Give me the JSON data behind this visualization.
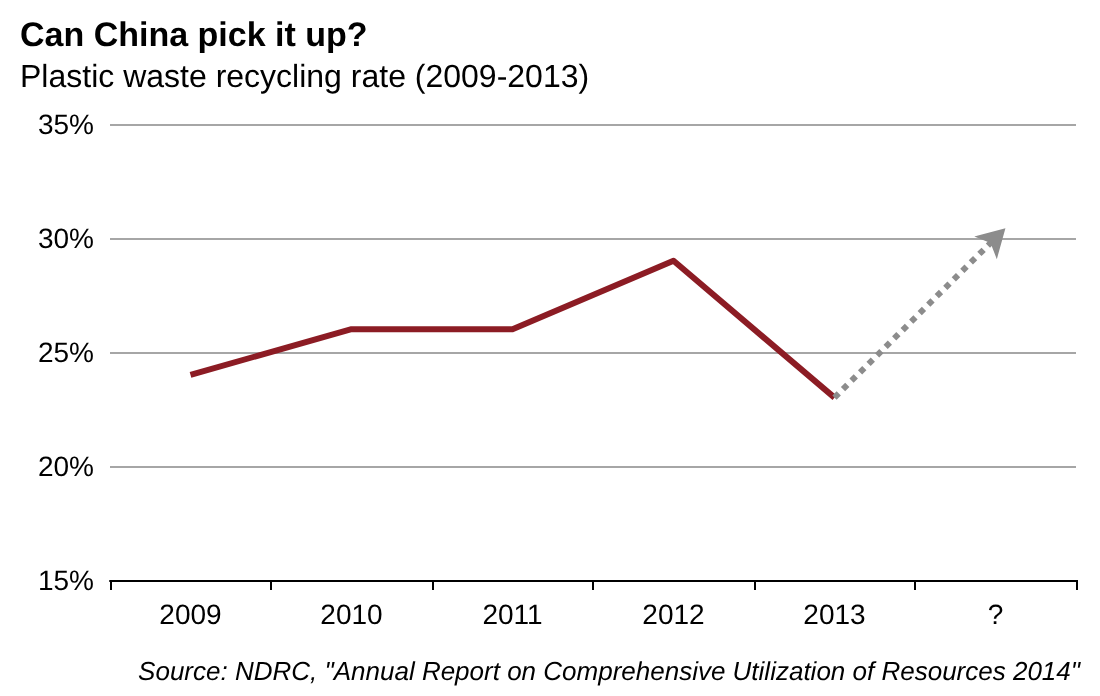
{
  "chart_data": {
    "type": "line",
    "title": "Can China pick it up?",
    "subtitle": "Plastic waste recycling rate (2009-2013)",
    "categories": [
      "2009",
      "2010",
      "2011",
      "2012",
      "2013",
      "?"
    ],
    "series": [
      {
        "color": "#8c1c24",
        "values": [
          24,
          26,
          26,
          29,
          23,
          null
        ],
        "marker": "none",
        "line_style": "solid"
      },
      {
        "color": "#8c8c8c",
        "values": [
          null,
          null,
          null,
          null,
          23,
          30
        ],
        "line_style": "dotted"
      }
    ],
    "ylim": [
      15,
      35
    ],
    "yticks": [
      {
        "value": 15,
        "label": "15%"
      },
      {
        "value": 20,
        "label": "20%"
      },
      {
        "value": 25,
        "label": "25%"
      },
      {
        "value": 30,
        "label": "30%"
      },
      {
        "value": 35,
        "label": "35%"
      }
    ],
    "grid": "y",
    "annotations": [
      "Source: NDRC, \"Annual Report on Comprehensive Utilization of Resources 2014\""
    ]
  }
}
